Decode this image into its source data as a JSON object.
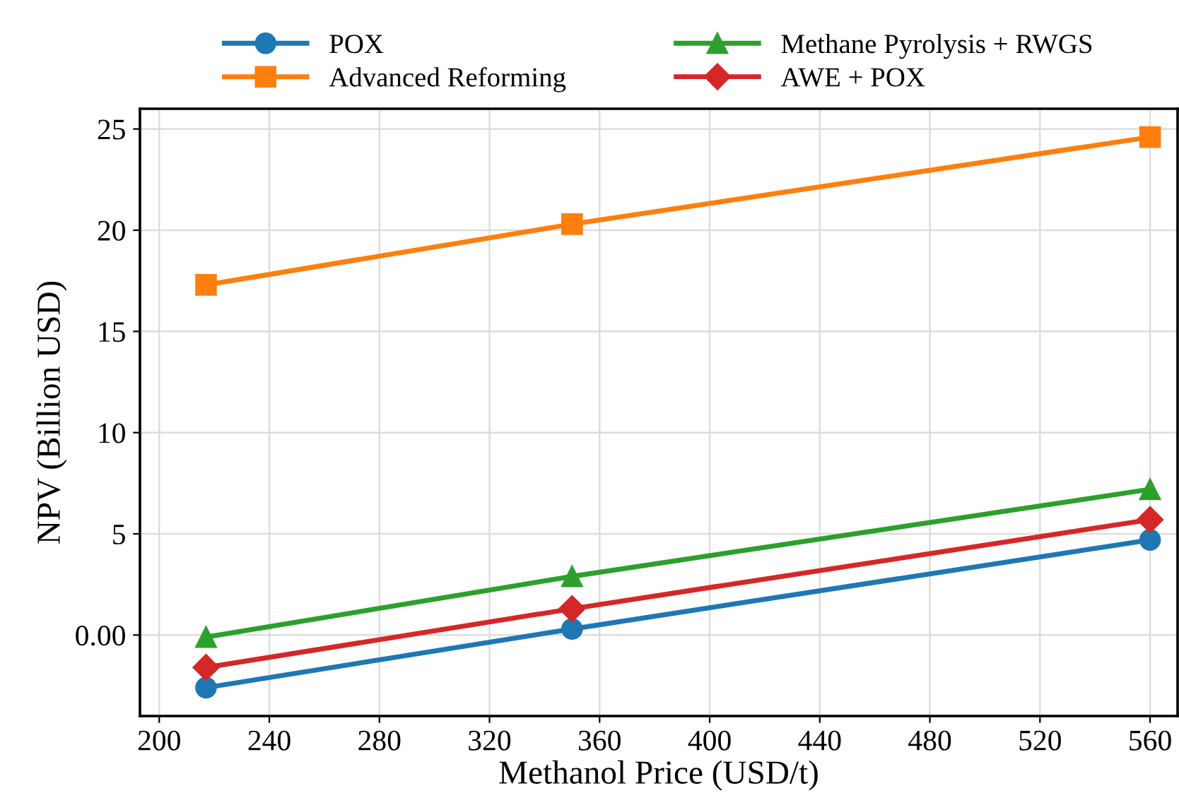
{
  "chart_data": {
    "type": "line",
    "xlabel": "Methanol Price (USD/t)",
    "ylabel": "NPV (Billion USD)",
    "x": [
      217,
      350,
      560
    ],
    "series": [
      {
        "name": "POX",
        "color": "#1f77b4",
        "marker": "circle",
        "values": [
          -2.6,
          0.3,
          4.7
        ]
      },
      {
        "name": "Advanced Reforming",
        "color": "#ff7f0e",
        "marker": "square",
        "values": [
          17.3,
          20.3,
          24.6
        ]
      },
      {
        "name": "Methane Pyrolysis + RWGS",
        "color": "#2ca02c",
        "marker": "triangle",
        "values": [
          -0.1,
          2.9,
          7.2
        ]
      },
      {
        "name": "AWE + POX",
        "color": "#d62728",
        "marker": "diamond",
        "values": [
          -1.6,
          1.3,
          5.7
        ]
      }
    ],
    "xlim": [
      193,
      570
    ],
    "xticks": [
      200,
      240,
      280,
      320,
      360,
      400,
      440,
      480,
      520,
      560
    ],
    "ylim": [
      -4,
      26
    ],
    "yticks": [
      {
        "value": 0,
        "label": "0.00"
      },
      5,
      10,
      15,
      20,
      25
    ],
    "grid": true,
    "legend": "top",
    "line_style": "solid"
  }
}
